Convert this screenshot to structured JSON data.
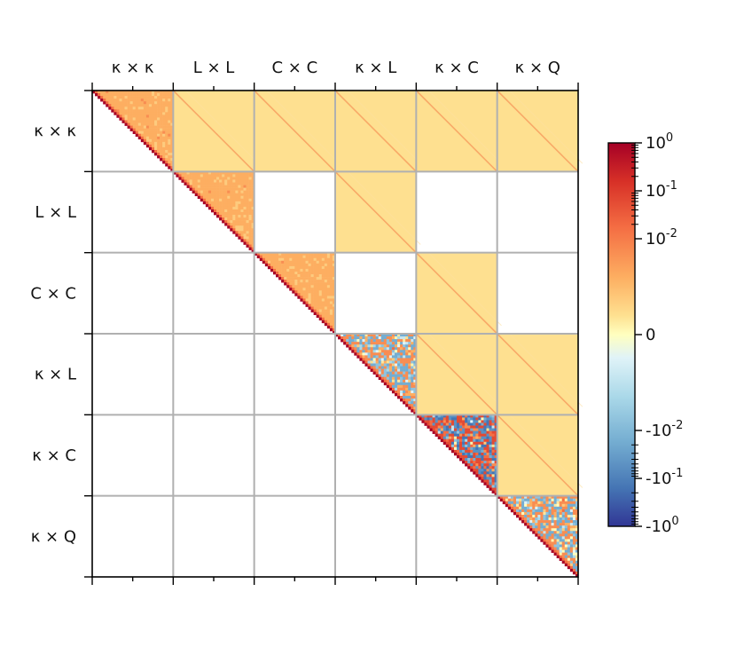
{
  "chart_data": {
    "type": "heatmap",
    "title": "",
    "blocks": [
      "κ × κ",
      "L × L",
      "C × C",
      "κ × L",
      "κ × C",
      "κ × Q"
    ],
    "structure": "upper-triangular correlation matrix, 6×6 blocks, lower triangle empty",
    "colorbar": {
      "scale": "symlog",
      "colormap": "RdYlBu_r",
      "range": [
        -1,
        1
      ],
      "tick_labels": [
        "10^0",
        "10^-1",
        "10^-2",
        "0",
        "-10^-2",
        "-10^-1",
        "-10^0"
      ],
      "tick_values": [
        1,
        0.1,
        0.01,
        0,
        -0.01,
        -0.1,
        -1
      ]
    },
    "filled_blocks": [
      {
        "row": "κ × κ",
        "col": "κ × κ",
        "kind": "diagonal"
      },
      {
        "row": "κ × κ",
        "col": "L × L",
        "kind": "off-diagonal",
        "value_level": 0.005
      },
      {
        "row": "κ × κ",
        "col": "C × C",
        "kind": "off-diagonal",
        "value_level": 0.005
      },
      {
        "row": "κ × κ",
        "col": "κ × L",
        "kind": "off-diagonal",
        "value_level": 0.005
      },
      {
        "row": "κ × κ",
        "col": "κ × C",
        "kind": "off-diagonal",
        "value_level": 0.005
      },
      {
        "row": "κ × κ",
        "col": "κ × Q",
        "kind": "off-diagonal",
        "value_level": 0.005
      },
      {
        "row": "L × L",
        "col": "L × L",
        "kind": "diagonal"
      },
      {
        "row": "L × L",
        "col": "κ × L",
        "kind": "off-diagonal",
        "value_level": 0.005
      },
      {
        "row": "C × C",
        "col": "C × C",
        "kind": "diagonal"
      },
      {
        "row": "C × C",
        "col": "κ × C",
        "kind": "off-diagonal",
        "value_level": 0.005
      },
      {
        "row": "κ × L",
        "col": "κ × L",
        "kind": "diagonal-noisy"
      },
      {
        "row": "κ × L",
        "col": "κ × C",
        "kind": "off-diagonal",
        "value_level": 0.005
      },
      {
        "row": "κ × L",
        "col": "κ × Q",
        "kind": "off-diagonal",
        "value_level": 0.005
      },
      {
        "row": "κ × C",
        "col": "κ × C",
        "kind": "diagonal-very-noisy"
      },
      {
        "row": "κ × C",
        "col": "κ × Q",
        "kind": "off-diagonal",
        "value_level": 0.005
      },
      {
        "row": "κ × Q",
        "col": "κ × Q",
        "kind": "diagonal-noisy"
      }
    ],
    "grid": true,
    "legend": "colorbar-right"
  }
}
